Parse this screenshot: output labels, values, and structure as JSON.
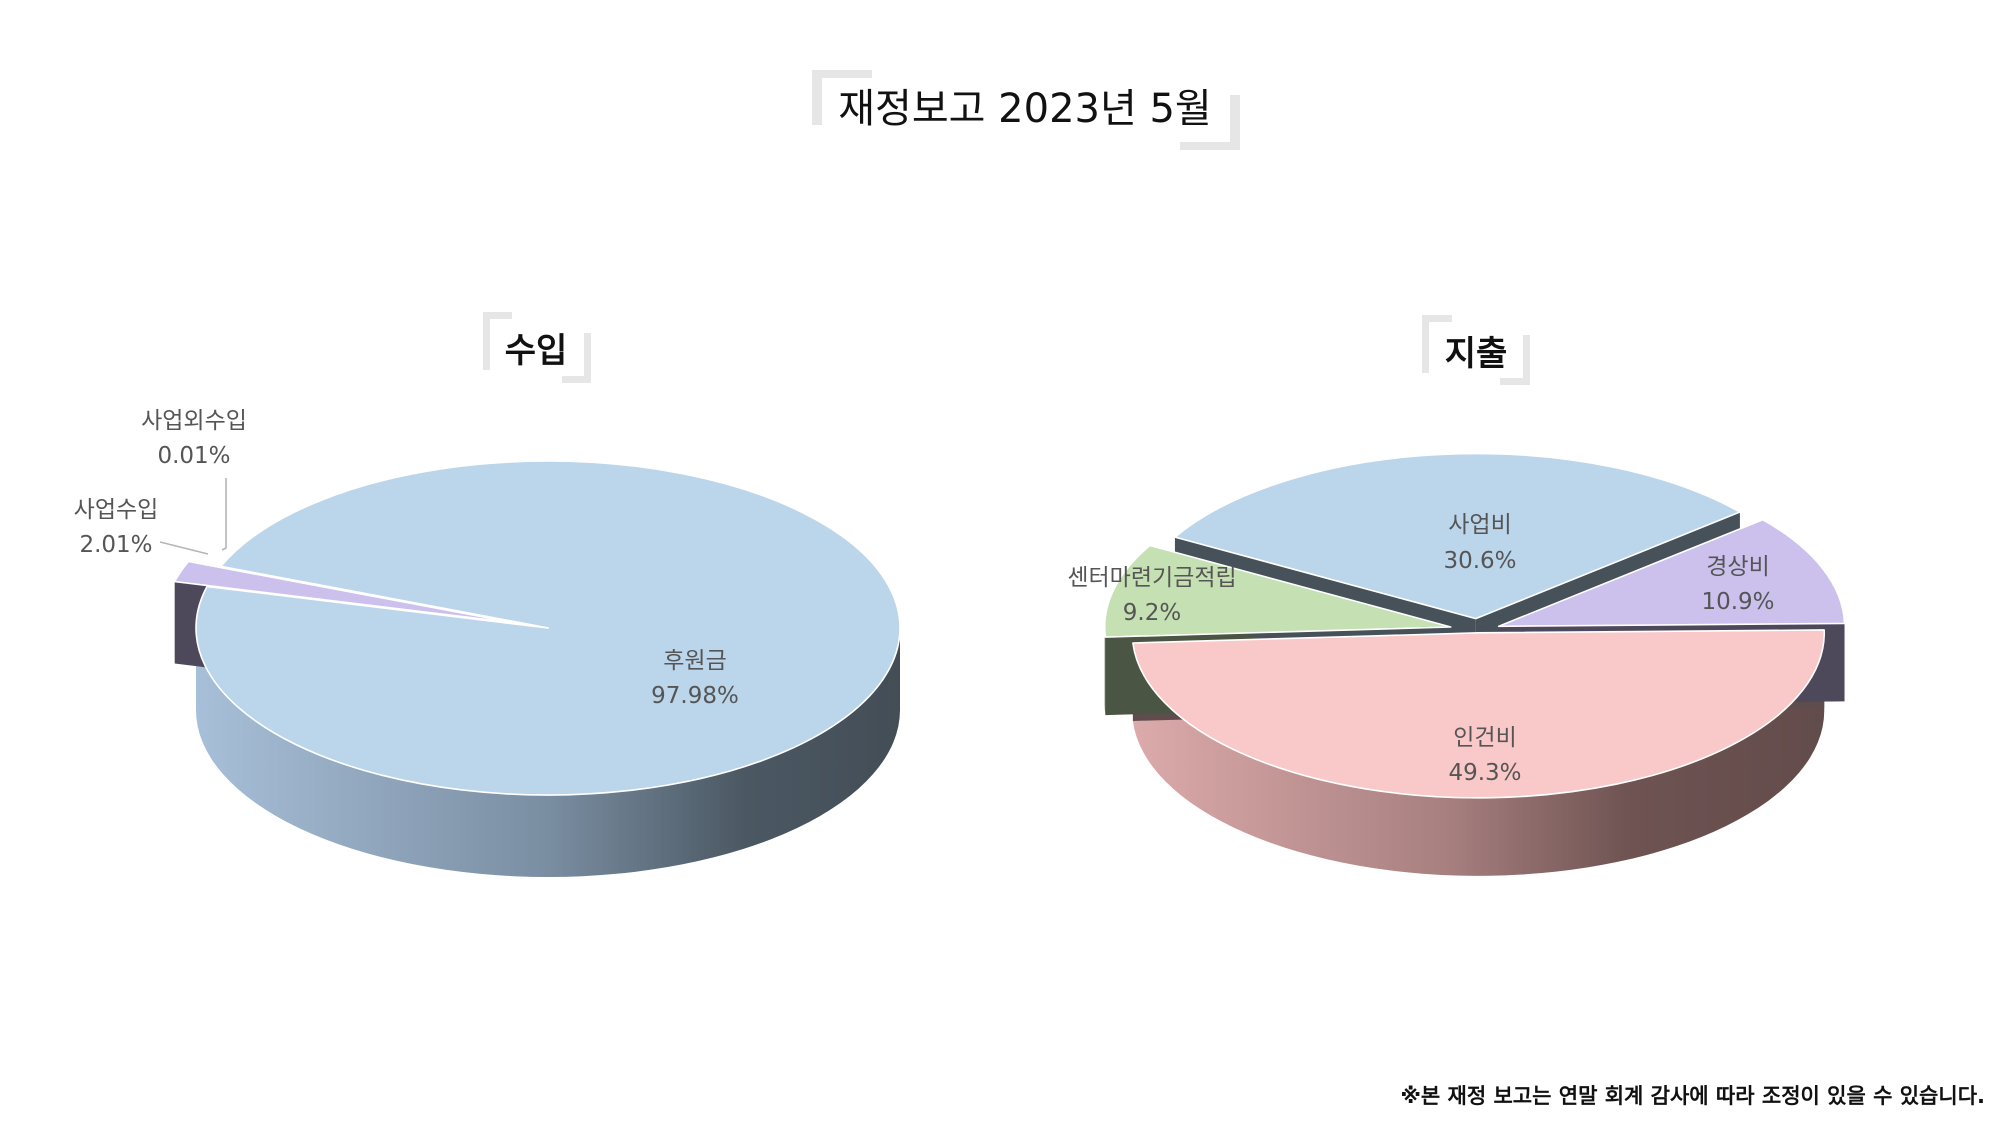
{
  "page": {
    "title": "재정보고 2023년 5월",
    "footnote": "※본 재정 보고는 연말 회계 감사에 따라 조정이 있을 수 있습니다."
  },
  "colors": {
    "bracket": "#e6e6e6",
    "label": "#555555",
    "blue": "#bbd5ea",
    "purple": "#ccc0ec",
    "green": "#c5e0b3",
    "pink": "#f9c9c9"
  },
  "chart_data": [
    {
      "type": "pie",
      "title": "수입",
      "slices": [
        {
          "label": "후원금",
          "value": 97.98,
          "value_text": "97.98%",
          "color": "#bbd5ea"
        },
        {
          "label": "사업수입",
          "value": 2.01,
          "value_text": "2.01%",
          "color": "#ccc0ec"
        },
        {
          "label": "사업외수입",
          "value": 0.01,
          "value_text": "0.01%",
          "color": "#e6e6e6"
        }
      ]
    },
    {
      "type": "pie",
      "title": "지출",
      "slices": [
        {
          "label": "인건비",
          "value": 49.3,
          "value_text": "49.3%",
          "color": "#f9c9c9"
        },
        {
          "label": "센터마련기금적립",
          "value": 9.2,
          "value_text": "9.2%",
          "color": "#c5e0b3"
        },
        {
          "label": "사업비",
          "value": 30.6,
          "value_text": "30.6%",
          "color": "#bbd5ea"
        },
        {
          "label": "경상비",
          "value": 10.9,
          "value_text": "10.9%",
          "color": "#ccc0ec"
        }
      ]
    }
  ]
}
